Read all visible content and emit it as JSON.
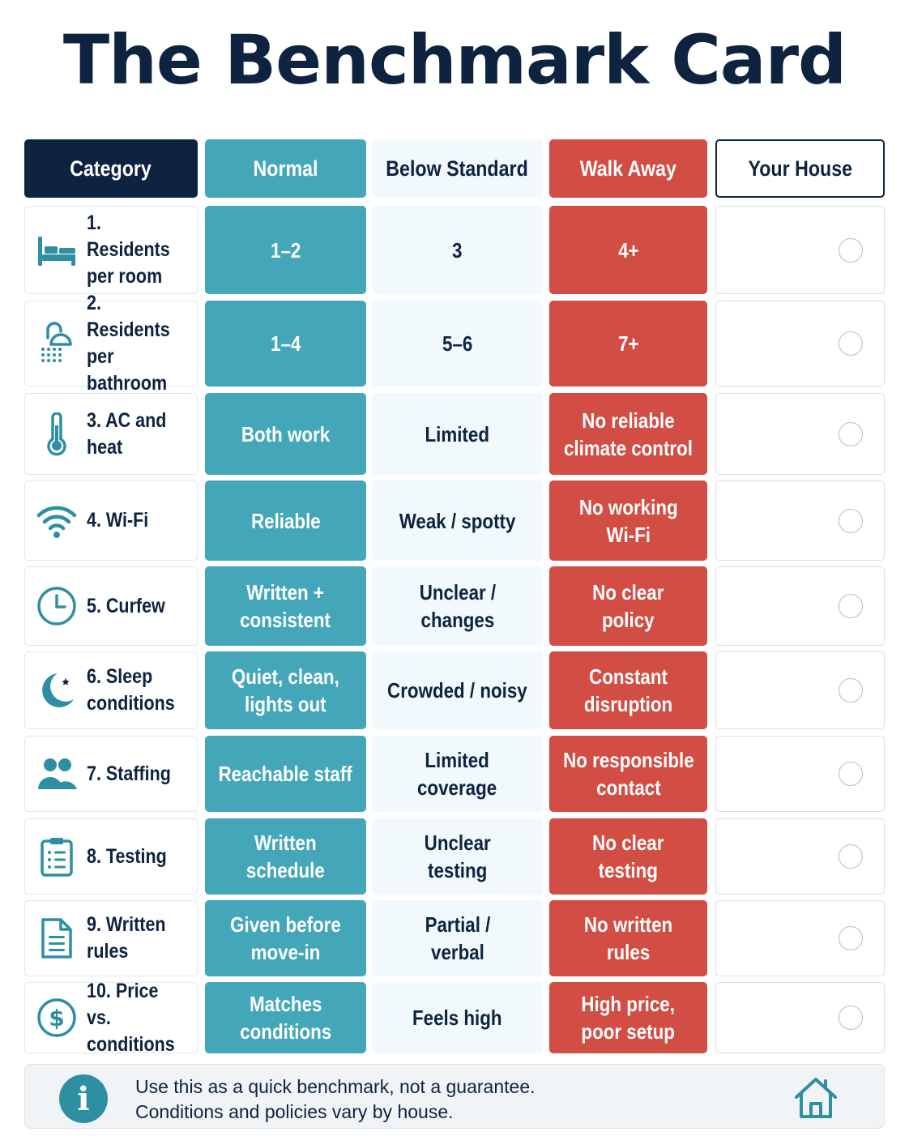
{
  "title": "The Benchmark Card",
  "colors": {
    "navy": "#0e2340",
    "normal": "#44a7b9",
    "below": "#f2f9fc",
    "walk_away": "#d24d43",
    "info": "#2f8fa2"
  },
  "headers": {
    "category": "Category",
    "normal": "Normal",
    "below": "Below Standard",
    "walk": "Walk Away",
    "your": "Your House"
  },
  "rows": [
    {
      "icon": "bed-icon",
      "category": "1. Residents\nper room",
      "normal": "1–2",
      "below": "3",
      "walk": "4+"
    },
    {
      "icon": "shower-icon",
      "category": "2. Residents\nper bathroom",
      "normal": "1–4",
      "below": "5–6",
      "walk": "7+"
    },
    {
      "icon": "thermometer-icon",
      "category": "3. AC and heat",
      "normal": "Both work",
      "below": "Limited",
      "walk": "No reliable\nclimate control"
    },
    {
      "icon": "wifi-icon",
      "category": "4. Wi-Fi",
      "normal": "Reliable",
      "below": "Weak / spotty",
      "walk": "No working\nWi-Fi"
    },
    {
      "icon": "clock-icon",
      "category": "5. Curfew",
      "normal": "Written +\nconsistent",
      "below": "Unclear /\nchanges",
      "walk": "No clear\npolicy"
    },
    {
      "icon": "moon-icon",
      "category": "6. Sleep\nconditions",
      "normal": "Quiet, clean,\nlights out",
      "below": "Crowded / noisy",
      "walk": "Constant\ndisruption"
    },
    {
      "icon": "people-icon",
      "category": "7. Staffing",
      "normal": "Reachable staff",
      "below": "Limited\ncoverage",
      "walk": "No responsible\ncontact"
    },
    {
      "icon": "clipboard-icon",
      "category": "8. Testing",
      "normal": "Written\nschedule",
      "below": "Unclear\ntesting",
      "walk": "No clear\ntesting"
    },
    {
      "icon": "document-icon",
      "category": "9. Written rules",
      "normal": "Given before\nmove-in",
      "below": "Partial /\nverbal",
      "walk": "No written\nrules"
    },
    {
      "icon": "dollar-icon",
      "category": "10. Price vs.\nconditions",
      "normal": "Matches\nconditions",
      "below": "Feels high",
      "walk": "High price,\npoor setup"
    }
  ],
  "footer": {
    "icon": "info-icon",
    "line1": "Use this as a quick benchmark, not a guarantee.",
    "line2": "Conditions and policies vary by house.",
    "home_icon": "home-icon"
  }
}
